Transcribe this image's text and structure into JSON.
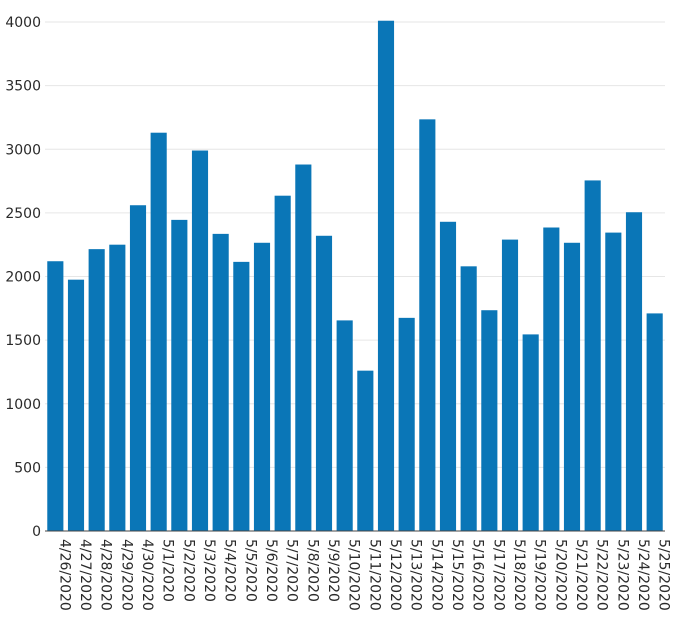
{
  "chart_data": {
    "type": "bar",
    "categories": [
      "4/26/2020",
      "4/27/2020",
      "4/28/2020",
      "4/29/2020",
      "4/30/2020",
      "5/1/2020",
      "5/2/2020",
      "5/3/2020",
      "5/4/2020",
      "5/5/2020",
      "5/6/2020",
      "5/7/2020",
      "5/8/2020",
      "5/9/2020",
      "5/10/2020",
      "5/11/2020",
      "5/12/2020",
      "5/13/2020",
      "5/14/2020",
      "5/15/2020",
      "5/16/2020",
      "5/17/2020",
      "5/18/2020",
      "5/19/2020",
      "5/20/2020",
      "5/21/2020",
      "5/22/2020",
      "5/23/2020",
      "5/24/2020",
      "5/25/2020"
    ],
    "values": [
      2120,
      1975,
      2215,
      2250,
      2560,
      3130,
      2445,
      2990,
      2335,
      2115,
      2265,
      2635,
      2880,
      2320,
      1655,
      1260,
      4010,
      1675,
      3235,
      2430,
      2080,
      1735,
      2290,
      1545,
      2385,
      2265,
      2755,
      2345,
      2505,
      1710
    ],
    "ylim": [
      0,
      4000
    ],
    "yticks": [
      0,
      500,
      1000,
      1500,
      2000,
      2500,
      3000,
      3500,
      4000
    ],
    "grid": true,
    "title": "",
    "xlabel": "",
    "ylabel": "",
    "colors": {
      "bar": "#0a76b7"
    }
  }
}
